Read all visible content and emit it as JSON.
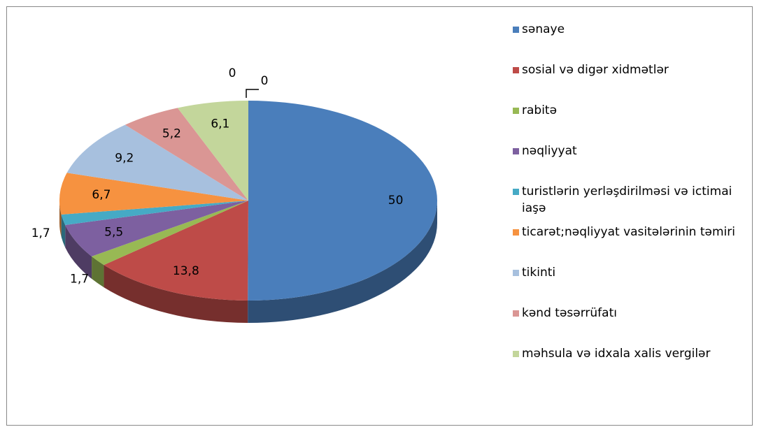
{
  "chart_data": {
    "type": "pie3d",
    "categories": [
      "sənaye",
      "sosial və digər xidmətlər",
      "rabitə",
      "nəqliyyat",
      "turistlərin yerləşdirilməsi və ictimai iaşə",
      "ticarət;nəqliyyat vasitələrinin təmiri",
      "tikinti",
      "kənd təsərrüfatı",
      "məhsula və idxala xalis vergilər",
      null,
      null
    ],
    "values": [
      50,
      13.8,
      1.7,
      5.5,
      1.7,
      6.7,
      9.2,
      5.2,
      6.1,
      0,
      0
    ],
    "value_labels": [
      "50",
      "13,8",
      "1,7",
      "5,5",
      "1,7",
      "6,7",
      "9,2",
      "5,2",
      "6,1",
      "0",
      "0"
    ],
    "colors": [
      "#4a7ebb",
      "#be4b48",
      "#98b954",
      "#7d60a0",
      "#46aac5",
      "#f69240",
      "#a7c0de",
      "#da9694",
      "#c3d69b"
    ],
    "legend": "right"
  }
}
